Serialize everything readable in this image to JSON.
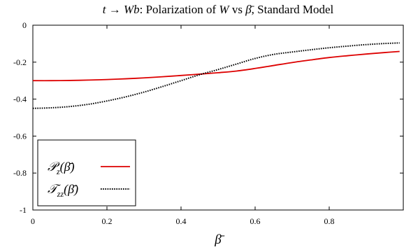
{
  "chart_data": {
    "type": "line",
    "title": "t → Wb: Polarization of W vs β̄, Standard Model",
    "title_parts": {
      "formula": "t → Wb",
      "text": ": Polarization of ",
      "var_w": "W",
      "vs": " vs ",
      "beta": "β̄",
      "tail": ", Standard Model"
    },
    "xlabel": "β̄",
    "ylabel": "",
    "xlim": [
      0,
      1
    ],
    "ylim": [
      -1,
      0
    ],
    "x_ticks": [
      0,
      0.2,
      0.4,
      0.6,
      0.8
    ],
    "x_tick_labels": [
      "0",
      "0.2",
      "0.4",
      "0.6",
      "0.8"
    ],
    "y_ticks": [
      0,
      -0.2,
      -0.4,
      -0.6,
      -0.8,
      -1
    ],
    "y_tick_labels": [
      "0",
      "-0.2",
      "-0.4",
      "-0.6",
      "-0.8",
      "-1"
    ],
    "grid": false,
    "legend_position": "bottom-left",
    "series": [
      {
        "name": "𝒫z(β̄)",
        "legend_label": {
          "main": "𝒫",
          "sub": "z",
          "arg": "(β̄)"
        },
        "color": "#dd0000",
        "style": "solid",
        "x": [
          0.0,
          0.05,
          0.1,
          0.15,
          0.2,
          0.25,
          0.3,
          0.35,
          0.4,
          0.45,
          0.5,
          0.55,
          0.6,
          0.65,
          0.7,
          0.75,
          0.8,
          0.85,
          0.9,
          0.95,
          0.99
        ],
        "y": [
          -0.3,
          -0.3,
          -0.299,
          -0.297,
          -0.294,
          -0.29,
          -0.285,
          -0.279,
          -0.272,
          -0.265,
          -0.257,
          -0.248,
          -0.234,
          -0.218,
          -0.202,
          -0.188,
          -0.175,
          -0.165,
          -0.156,
          -0.148,
          -0.142
        ]
      },
      {
        "name": "𝒯zz(β̄)",
        "legend_label": {
          "main": "𝒯",
          "sub": "zz",
          "arg": "(β̄)"
        },
        "color": "#000000",
        "style": "dotted",
        "x": [
          0.0,
          0.05,
          0.1,
          0.15,
          0.2,
          0.25,
          0.3,
          0.35,
          0.4,
          0.45,
          0.5,
          0.55,
          0.6,
          0.65,
          0.7,
          0.75,
          0.8,
          0.85,
          0.9,
          0.95,
          0.99
        ],
        "y": [
          -0.45,
          -0.447,
          -0.44,
          -0.428,
          -0.41,
          -0.388,
          -0.362,
          -0.332,
          -0.3,
          -0.268,
          -0.24,
          -0.21,
          -0.18,
          -0.158,
          -0.145,
          -0.133,
          -0.122,
          -0.113,
          -0.105,
          -0.099,
          -0.096
        ]
      }
    ]
  }
}
